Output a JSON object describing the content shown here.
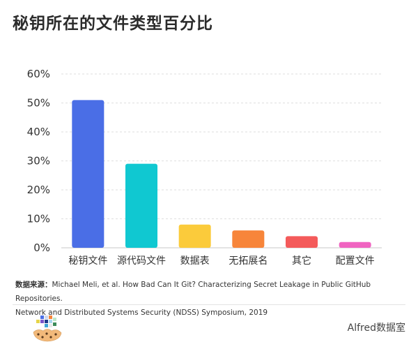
{
  "title": "秘钥所在的文件类型百分比",
  "chart_data": {
    "type": "bar",
    "categories": [
      "秘钥文件",
      "源代码文件",
      "数据表",
      "无拓展名",
      "其它",
      "配置文件"
    ],
    "values": [
      51,
      29,
      8,
      6,
      4,
      2
    ],
    "colors": [
      "#4a6ee6",
      "#10c8d1",
      "#fbcb3b",
      "#f7853a",
      "#f45a5a",
      "#f064c1"
    ],
    "unit": "%",
    "ylim": [
      0,
      60
    ],
    "yticks": [
      0,
      10,
      20,
      30,
      40,
      50,
      60
    ],
    "ytick_labels": [
      "0%",
      "10%",
      "20%",
      "30%",
      "40%",
      "50%",
      "60%"
    ],
    "grid": true,
    "title": "",
    "xlabel": "",
    "ylabel": ""
  },
  "source": {
    "label": "数据来源：",
    "line1": "Michael Meli, et al.  How Bad Can It Git? Characterizing Secret Leakage in Public GitHub Repositories.",
    "line2": "Network and Distributed Systems Security (NDSS) Symposium, 2019"
  },
  "brand": "Alfred数据室"
}
